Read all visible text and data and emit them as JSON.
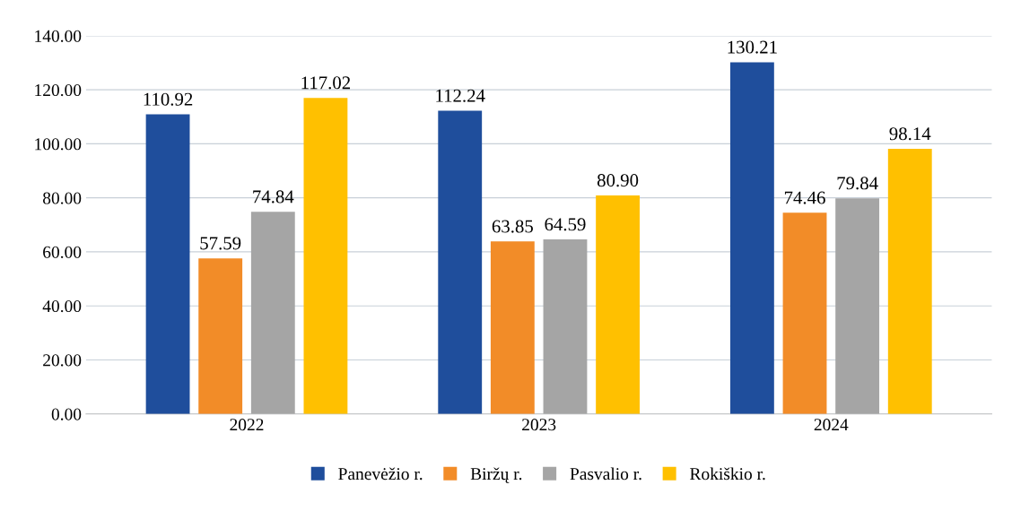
{
  "chart_data": {
    "type": "bar",
    "categories": [
      "2022",
      "2023",
      "2024"
    ],
    "series": [
      {
        "name": "Panevėžio r.",
        "color": "#1f4e9c",
        "values": [
          110.92,
          112.24,
          130.21
        ],
        "value_labels": [
          "110.92",
          "112.24",
          "130.21"
        ]
      },
      {
        "name": "Biržų r.",
        "color": "#f28c28",
        "values": [
          57.59,
          63.85,
          74.46
        ],
        "value_labels": [
          "57.59",
          "63.85",
          "74.46"
        ]
      },
      {
        "name": "Pasvalio r.",
        "color": "#a5a5a5",
        "values": [
          74.84,
          64.59,
          79.84
        ],
        "value_labels": [
          "74.84",
          "64.59",
          "79.84"
        ]
      },
      {
        "name": "Rokiškio r.",
        "color": "#ffc000",
        "values": [
          117.02,
          80.9,
          98.14
        ],
        "value_labels": [
          "117.02",
          "80.90",
          "98.14"
        ]
      }
    ],
    "ylim": [
      0,
      140
    ],
    "yticks": [
      {
        "value": 0,
        "label": "0.00"
      },
      {
        "value": 20,
        "label": "20.00"
      },
      {
        "value": 40,
        "label": "40.00"
      },
      {
        "value": 60,
        "label": "60.00"
      },
      {
        "value": 80,
        "label": "80.00"
      },
      {
        "value": 100,
        "label": "100.00"
      },
      {
        "value": 120,
        "label": "120.00"
      },
      {
        "value": 140,
        "label": "140.00"
      }
    ],
    "grid": "y",
    "legend": "bottom"
  }
}
